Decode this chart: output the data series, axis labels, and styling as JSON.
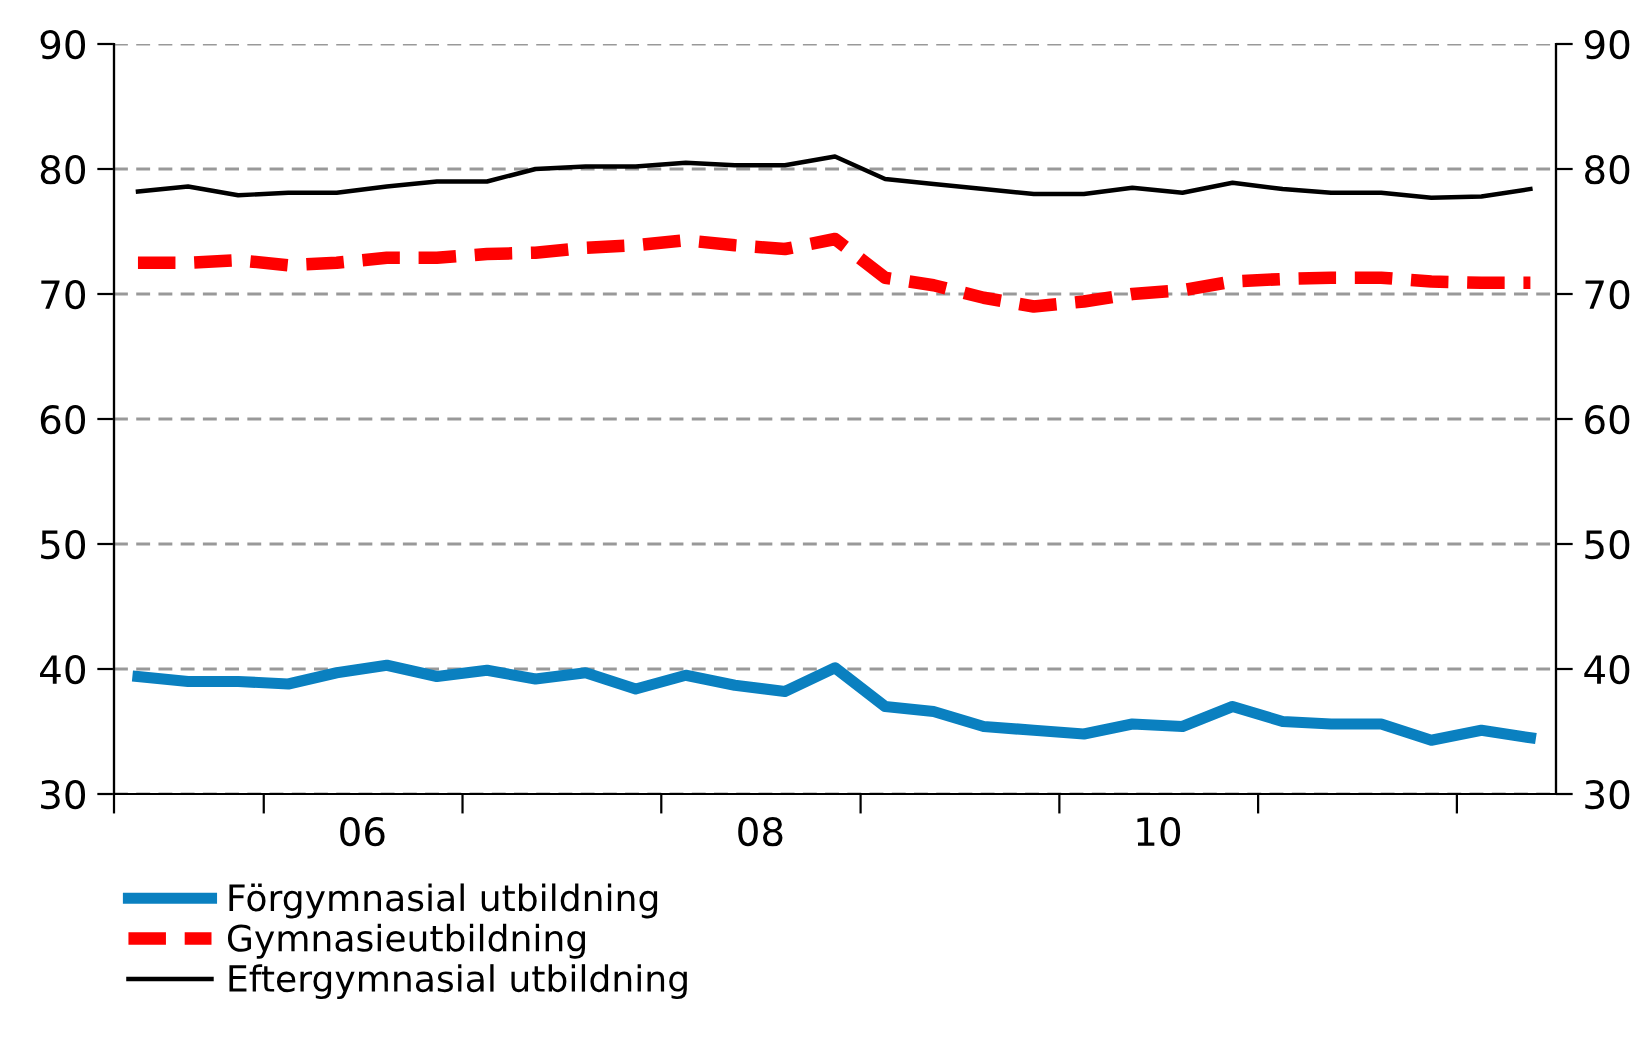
{
  "chart_data": {
    "type": "line",
    "x": [
      "2005-05-15",
      "2005-08-15",
      "2005-11-15",
      "2006-02-15",
      "2006-05-15",
      "2006-08-15",
      "2006-11-15",
      "2007-02-15",
      "2007-05-15",
      "2007-08-15",
      "2007-11-15",
      "2008-02-15",
      "2008-05-15",
      "2008-08-15",
      "2008-11-15",
      "2009-02-15",
      "2009-05-15",
      "2009-08-15",
      "2009-11-15",
      "2010-02-15",
      "2010-05-15",
      "2010-08-15",
      "2010-11-15",
      "2011-02-15",
      "2011-05-15",
      "2011-08-15",
      "2011-11-15",
      "2012-02-15",
      "2012-05-15"
    ],
    "series": [
      {
        "name": "Förgymnasial utbildning",
        "color": "#0a80c0",
        "line_style": "solid",
        "values": [
          39.4,
          39.0,
          39.0,
          38.8,
          39.7,
          40.3,
          39.4,
          39.9,
          39.2,
          39.7,
          38.4,
          39.5,
          38.7,
          38.2,
          40.1,
          37.0,
          36.6,
          35.4,
          35.1,
          34.8,
          35.6,
          35.4,
          37.0,
          35.8,
          35.6,
          35.6,
          34.3,
          35.1,
          34.5
        ]
      },
      {
        "name": "Gymnasieutbildning",
        "color": "#ff0000",
        "line_style": "dashed",
        "values": [
          72.5,
          72.5,
          72.7,
          72.3,
          72.5,
          72.9,
          72.9,
          73.2,
          73.3,
          73.7,
          73.9,
          74.3,
          73.9,
          73.6,
          74.4,
          71.3,
          70.7,
          69.7,
          69.0,
          69.4,
          70.0,
          70.3,
          71.0,
          71.2,
          71.3,
          71.3,
          71.0,
          70.9,
          70.9
        ]
      },
      {
        "name": "Eftergymnasial utbildning",
        "color": "#000000",
        "line_style": "solid",
        "values": [
          78.2,
          78.6,
          77.9,
          78.1,
          78.1,
          78.6,
          79.0,
          79.0,
          80.0,
          80.2,
          80.2,
          80.5,
          80.3,
          80.3,
          81.0,
          79.2,
          78.8,
          78.4,
          78.0,
          78.0,
          78.5,
          78.1,
          78.9,
          78.4,
          78.1,
          78.1,
          77.7,
          77.8,
          78.4
        ]
      }
    ],
    "xlim": [
      "2005-04-01",
      "2012-07-01"
    ],
    "xticks": [
      {
        "value": "2005-04-01",
        "label": null
      },
      {
        "value": "2006-01-01",
        "label": null
      },
      {
        "value": "2006-07-01",
        "label": "06"
      },
      {
        "value": "2007-01-01",
        "label": null
      },
      {
        "value": "2008-01-01",
        "label": null
      },
      {
        "value": "2008-07-01",
        "label": "08"
      },
      {
        "value": "2009-01-01",
        "label": null
      },
      {
        "value": "2010-01-01",
        "label": null
      },
      {
        "value": "2010-07-01",
        "label": "10"
      },
      {
        "value": "2011-01-01",
        "label": null
      },
      {
        "value": "2012-01-01",
        "label": null
      }
    ],
    "ylim": [
      30,
      90
    ],
    "yticks": [
      30,
      40,
      50,
      60,
      70,
      80,
      90
    ],
    "y2lim": [
      30,
      90
    ],
    "y2ticks": [
      30,
      40,
      50,
      60,
      70,
      80,
      90
    ],
    "grid": "y",
    "legend": "bottom left",
    "marker": "none"
  }
}
